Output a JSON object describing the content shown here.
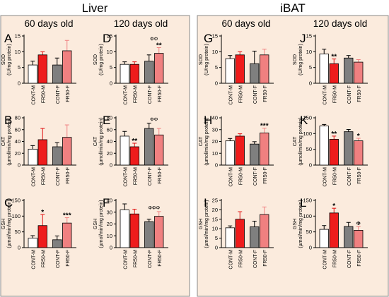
{
  "sections": [
    {
      "title": "Liver",
      "groups": [
        "60 days old",
        "120 days old"
      ]
    },
    {
      "title": "iBAT",
      "groups": [
        "60 days old",
        "120 days old"
      ]
    }
  ],
  "categories": [
    "CONT-M",
    "FR50-M",
    "CONT-F",
    "FR50-F"
  ],
  "colors": {
    "panel_bg": "#FBEBDD",
    "border": "#888888",
    "CONT-M": "#FFFFFF",
    "FR50-M": "#EE1C1C",
    "CONT-F": "#7F7F7F",
    "FR50-F": "#F08080",
    "FR50-M_err": "#E01010",
    "FR50-F_err": "#F08080"
  },
  "chart_data": [
    {
      "id": "A",
      "type": "bar",
      "ylabel": "SOD (U/mg protein)",
      "ylim": [
        0,
        15
      ],
      "yticks": [
        0,
        5,
        10,
        15
      ],
      "values": [
        5.8,
        9.0,
        5.8,
        10.3
      ],
      "errors": [
        1.2,
        1.0,
        2.2,
        3.3
      ],
      "annotations": [
        "",
        "",
        "",
        ""
      ],
      "top_annotation": ""
    },
    {
      "id": "D",
      "type": "bar",
      "ylabel": "SOD (U/mg protein)",
      "ylim": [
        0,
        15
      ],
      "yticks": [
        0,
        5,
        10,
        15
      ],
      "values": [
        6.0,
        6.0,
        7.0,
        9.5
      ],
      "errors": [
        0.8,
        0.8,
        2.0,
        1.8
      ],
      "annotations": [
        "",
        "",
        "",
        "**"
      ],
      "top_annotation": "ΦΦ"
    },
    {
      "id": "G",
      "type": "bar",
      "ylabel": "SOD (U/mg protein)",
      "ylim": [
        0,
        15
      ],
      "yticks": [
        0,
        5,
        10,
        15
      ],
      "values": [
        7.8,
        9.0,
        6.2,
        9.0
      ],
      "errors": [
        1.0,
        1.0,
        4.0,
        1.8
      ],
      "annotations": [
        "",
        "",
        "",
        ""
      ],
      "top_annotation": ""
    },
    {
      "id": "J",
      "type": "bar",
      "ylabel": "SOD (U/mg protein)",
      "ylim": [
        0,
        15
      ],
      "yticks": [
        0,
        5,
        10,
        15
      ],
      "values": [
        9.3,
        6.2,
        8.0,
        6.7
      ],
      "errors": [
        1.5,
        1.5,
        0.8,
        0.8
      ],
      "annotations": [
        "",
        "**",
        "",
        ""
      ],
      "top_annotation": ""
    },
    {
      "id": "B",
      "type": "bar",
      "ylabel": "CAT (µmol/min/mg protein)",
      "ylim": [
        0,
        80
      ],
      "yticks": [
        0,
        20,
        40,
        60,
        80
      ],
      "values": [
        27,
        43,
        31,
        47
      ],
      "errors": [
        6,
        19,
        7,
        21
      ],
      "annotations": [
        "",
        "",
        "",
        ""
      ],
      "top_annotation": ""
    },
    {
      "id": "E",
      "type": "bar",
      "ylabel": "CAT (µmol/min/mg protein)",
      "ylim": [
        0,
        80
      ],
      "yticks": [
        0,
        20,
        40,
        60,
        80
      ],
      "values": [
        49,
        31,
        62,
        51
      ],
      "errors": [
        8,
        6,
        9,
        11
      ],
      "annotations": [
        "",
        "**",
        "",
        ""
      ],
      "top_annotation": "ΦΦ"
    },
    {
      "id": "H",
      "type": "bar",
      "ylabel": "CAT (µmol/min/mg protein)",
      "ylim": [
        0,
        40
      ],
      "yticks": [
        0,
        10,
        20,
        30,
        40
      ],
      "values": [
        20.5,
        24.5,
        17.8,
        27.2
      ],
      "errors": [
        2,
        2,
        2,
        4
      ],
      "annotations": [
        "",
        "",
        "",
        "***"
      ],
      "top_annotation": ""
    },
    {
      "id": "K",
      "type": "bar",
      "ylabel": "CAT (µmol/min/mg protein)",
      "ylim": [
        0,
        150
      ],
      "yticks": [
        0,
        50,
        100,
        150
      ],
      "values": [
        124,
        82,
        106,
        77
      ],
      "errors": [
        5,
        10,
        7,
        8
      ],
      "annotations": [
        "",
        "**",
        "",
        "*"
      ],
      "top_annotation": ""
    },
    {
      "id": "C",
      "type": "bar",
      "ylabel": "GSH (µmol/min/mg protein)",
      "ylim": [
        0,
        150
      ],
      "yticks": [
        0,
        50,
        100,
        150
      ],
      "values": [
        30,
        70,
        25,
        78
      ],
      "errors": [
        8,
        35,
        12,
        17
      ],
      "annotations": [
        "",
        "*",
        "",
        "***"
      ],
      "top_annotation": ""
    },
    {
      "id": "F",
      "type": "bar",
      "ylabel": "GSH (µmol/min/mg protein)",
      "ylim": [
        0,
        40
      ],
      "yticks": [
        0,
        10,
        20,
        30,
        40
      ],
      "values": [
        32,
        28.5,
        22,
        26.5
      ],
      "errors": [
        5,
        4,
        2,
        4
      ],
      "annotations": [
        "",
        "",
        "",
        ""
      ],
      "top_annotation": "ΦΦΦ"
    },
    {
      "id": "I",
      "type": "bar",
      "ylabel": "GSH (µmol/min/mg protein)",
      "ylim": [
        0,
        25
      ],
      "yticks": [
        0,
        5,
        10,
        15,
        20,
        25
      ],
      "values": [
        10.5,
        15,
        11,
        17.5
      ],
      "errors": [
        1,
        4,
        3,
        4
      ],
      "annotations": [
        "",
        "",
        "",
        ""
      ],
      "top_annotation": ""
    },
    {
      "id": "L",
      "type": "bar",
      "ylabel": "GSH (µmol/min/mg protein)",
      "ylim": [
        0,
        150
      ],
      "yticks": [
        0,
        50,
        100,
        150
      ],
      "values": [
        58,
        110,
        67,
        55
      ],
      "errors": [
        12,
        15,
        13,
        12
      ],
      "annotations": [
        "",
        "*",
        "",
        "Φ"
      ],
      "top_annotation": ""
    }
  ]
}
